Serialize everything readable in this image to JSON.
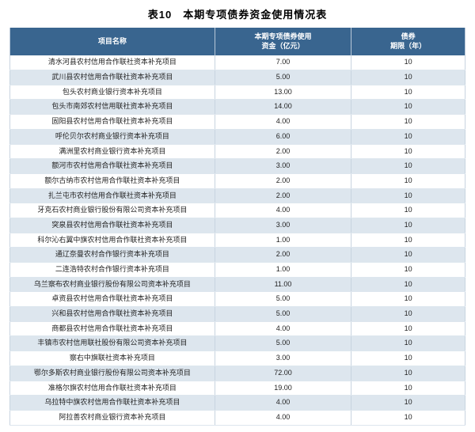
{
  "title": "表10　本期专项债券资金使用情况表",
  "columns": [
    "项目名称",
    "本期专项债券使用\n资金（亿元）",
    "债券\n期限（年）"
  ],
  "rows": [
    [
      "清水河县农村信用合作联社资本补充项目",
      "7.00",
      "10"
    ],
    [
      "武川县农村信用合作联社资本补充项目",
      "5.00",
      "10"
    ],
    [
      "包头农村商业银行资本补充项目",
      "13.00",
      "10"
    ],
    [
      "包头市南郊农村信用联社资本补充项目",
      "14.00",
      "10"
    ],
    [
      "固阳县农村信用合作联社资本补充项目",
      "4.00",
      "10"
    ],
    [
      "呼伦贝尔农村商业银行资本补充项目",
      "6.00",
      "10"
    ],
    [
      "满洲里农村商业银行资本补充项目",
      "2.00",
      "10"
    ],
    [
      "额河市农村信用合作联社资本补充项目",
      "3.00",
      "10"
    ],
    [
      "额尔古纳市农村信用合作联社资本补充项目",
      "2.00",
      "10"
    ],
    [
      "扎兰屯市农村信用合作联社资本补充项目",
      "2.00",
      "10"
    ],
    [
      "牙克石农村商业银行股份有限公司资本补充项目",
      "4.00",
      "10"
    ],
    [
      "突泉县农村信用合作联社资本补充项目",
      "3.00",
      "10"
    ],
    [
      "科尔沁右翼中旗农村信用合作联社资本补充项目",
      "1.00",
      "10"
    ],
    [
      "通辽奈曼农村合作银行资本补充项目",
      "2.00",
      "10"
    ],
    [
      "二连浩特农村合作银行资本补充项目",
      "1.00",
      "10"
    ],
    [
      "乌兰察布农村商业银行股份有限公司资本补充项目",
      "11.00",
      "10"
    ],
    [
      "卓资县农村信用合作联社资本补充项目",
      "5.00",
      "10"
    ],
    [
      "兴和县农村信用合作联社资本补充项目",
      "5.00",
      "10"
    ],
    [
      "商都县农村信用合作联社资本补充项目",
      "4.00",
      "10"
    ],
    [
      "丰镇市农村信用联社股份有限公司资本补充项目",
      "5.00",
      "10"
    ],
    [
      "察右中旗联社资本补充项目",
      "3.00",
      "10"
    ],
    [
      "鄂尔多斯农村商业银行股份有限公司资本补充项目",
      "72.00",
      "10"
    ],
    [
      "准格尔旗农村信用合作联社资本补充项目",
      "19.00",
      "10"
    ],
    [
      "乌拉特中旗农村信用合作联社资本补充项目",
      "4.00",
      "10"
    ],
    [
      "阿拉善农村商业银行资本补充项目",
      "4.00",
      "10"
    ]
  ],
  "style": {
    "header_bg": "#39658f",
    "header_fg": "#ffffff",
    "row_even_bg": "#ffffff",
    "row_odd_bg": "#dde6ee",
    "border_color": "#c8d4e0",
    "title_fontsize": 13,
    "cell_fontsize": 9
  }
}
